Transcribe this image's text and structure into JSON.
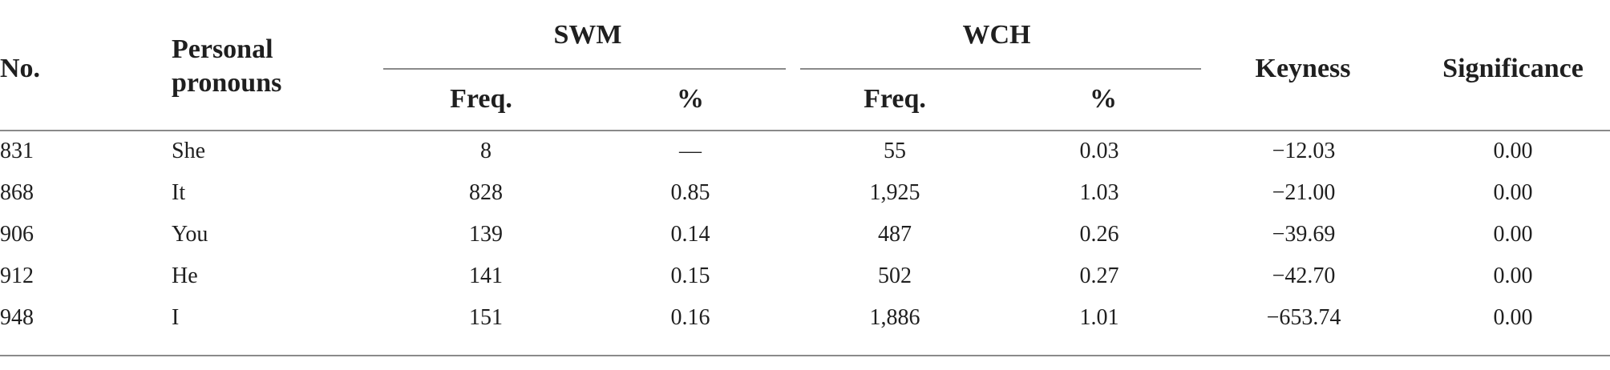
{
  "table": {
    "headers": {
      "no": "No.",
      "personal_pronouns_line1": "Personal",
      "personal_pronouns_line2": "pronouns",
      "swm": "SWM",
      "wch": "WCH",
      "freq_swm": "Freq.",
      "pct_swm": "%",
      "freq_wch": "Freq.",
      "pct_wch": "%",
      "keyness": "Keyness",
      "significance": "Significance"
    },
    "rows": [
      {
        "no": "831",
        "pronoun": "She",
        "swm_freq": "8",
        "swm_pct": "—",
        "wch_freq": "55",
        "wch_pct": "0.03",
        "keyness": "−12.03",
        "significance": "0.00"
      },
      {
        "no": "868",
        "pronoun": "It",
        "swm_freq": "828",
        "swm_pct": "0.85",
        "wch_freq": "1,925",
        "wch_pct": "1.03",
        "keyness": "−21.00",
        "significance": "0.00"
      },
      {
        "no": "906",
        "pronoun": "You",
        "swm_freq": "139",
        "swm_pct": "0.14",
        "wch_freq": "487",
        "wch_pct": "0.26",
        "keyness": "−39.69",
        "significance": "0.00"
      },
      {
        "no": "912",
        "pronoun": "He",
        "swm_freq": "141",
        "swm_pct": "0.15",
        "wch_freq": "502",
        "wch_pct": "0.27",
        "keyness": "−42.70",
        "significance": "0.00"
      },
      {
        "no": "948",
        "pronoun": "I",
        "swm_freq": "151",
        "swm_pct": "0.16",
        "wch_freq": "1,886",
        "wch_pct": "1.01",
        "keyness": "−653.74",
        "significance": "0.00"
      }
    ]
  }
}
